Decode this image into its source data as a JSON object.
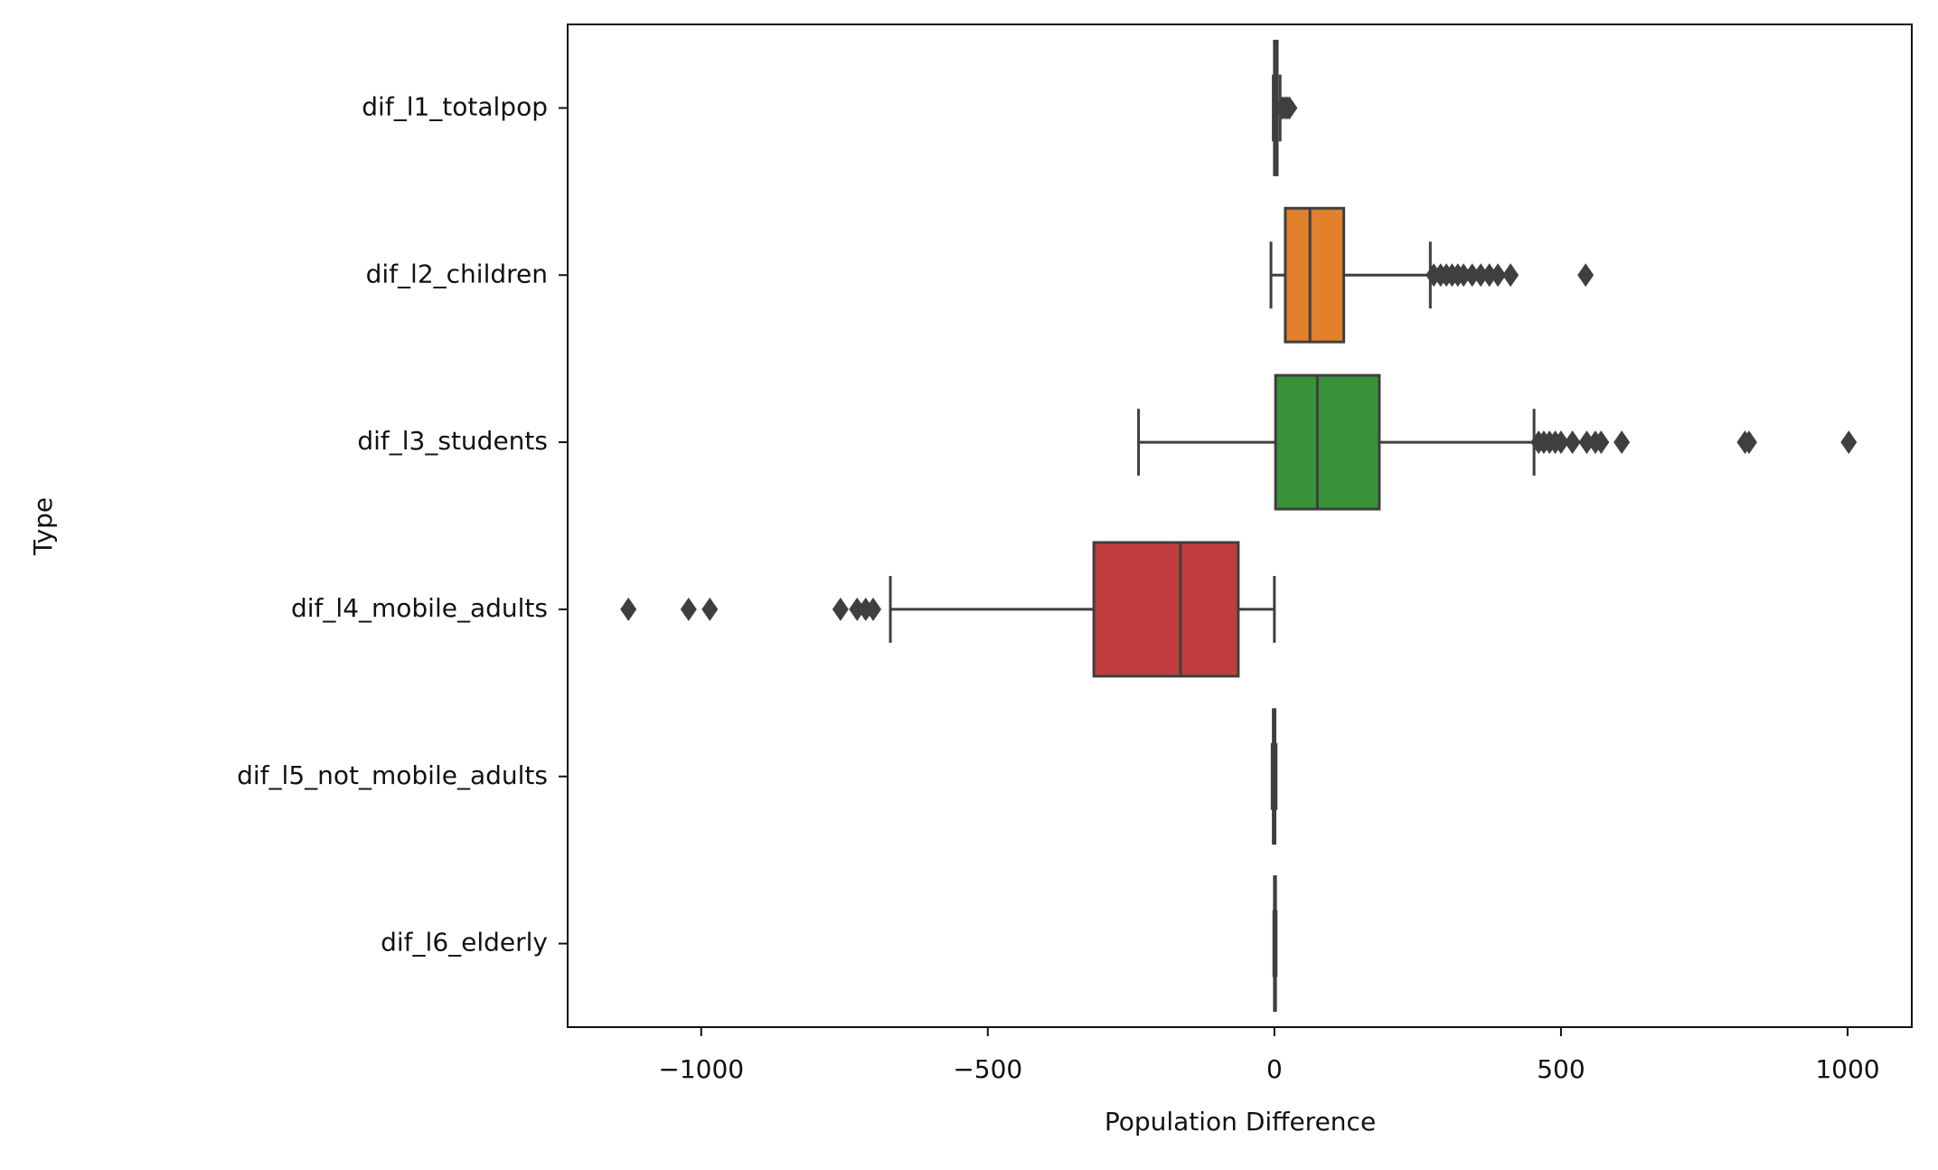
{
  "chart_data": {
    "type": "boxplot",
    "orientation": "horizontal",
    "xlabel": "Population Difference",
    "ylabel": "Type",
    "categories": [
      "dif_l1_totalpop",
      "dif_l2_children",
      "dif_l3_students",
      "dif_l4_mobile_adults",
      "dif_l5_not_mobile_adults",
      "dif_l6_elderly"
    ],
    "colors": [
      "#3274a1",
      "#e1812c",
      "#3a923a",
      "#c03d3e",
      "#9372b2",
      "#845b53"
    ],
    "boxes": [
      {
        "whislo": -2,
        "q1": 0,
        "med": 2,
        "q3": 5,
        "whishi": 10,
        "fliers": [
          14,
          18,
          22,
          26
        ]
      },
      {
        "whislo": -6,
        "q1": 19,
        "med": 62,
        "q3": 121,
        "whishi": 272,
        "fliers": [
          278,
          290,
          300,
          310,
          320,
          330,
          345,
          360,
          375,
          390,
          412,
          543
        ]
      },
      {
        "whislo": -237,
        "q1": 2,
        "med": 75,
        "q3": 183,
        "whishi": 453,
        "fliers": [
          461,
          470,
          480,
          490,
          500,
          520,
          545,
          560,
          570,
          606,
          821,
          828,
          1002
        ]
      },
      {
        "whislo": -670,
        "q1": -315,
        "med": -164,
        "q3": -63,
        "whishi": 0,
        "fliers": [
          -1127,
          -1022,
          -985,
          -757,
          -728,
          -713,
          -700
        ]
      },
      {
        "whislo": -4,
        "q1": -2,
        "med": 0,
        "q3": 1,
        "whishi": 3,
        "fliers": []
      },
      {
        "whislo": -1,
        "q1": 0,
        "med": 1,
        "q3": 2,
        "whishi": 3,
        "fliers": []
      }
    ],
    "xlim": [
      -1233,
      1112
    ],
    "xticks": [
      {
        "value": -1000,
        "label": "−1000"
      },
      {
        "value": -500,
        "label": "−500"
      },
      0,
      500,
      1000
    ],
    "grid": false
  }
}
